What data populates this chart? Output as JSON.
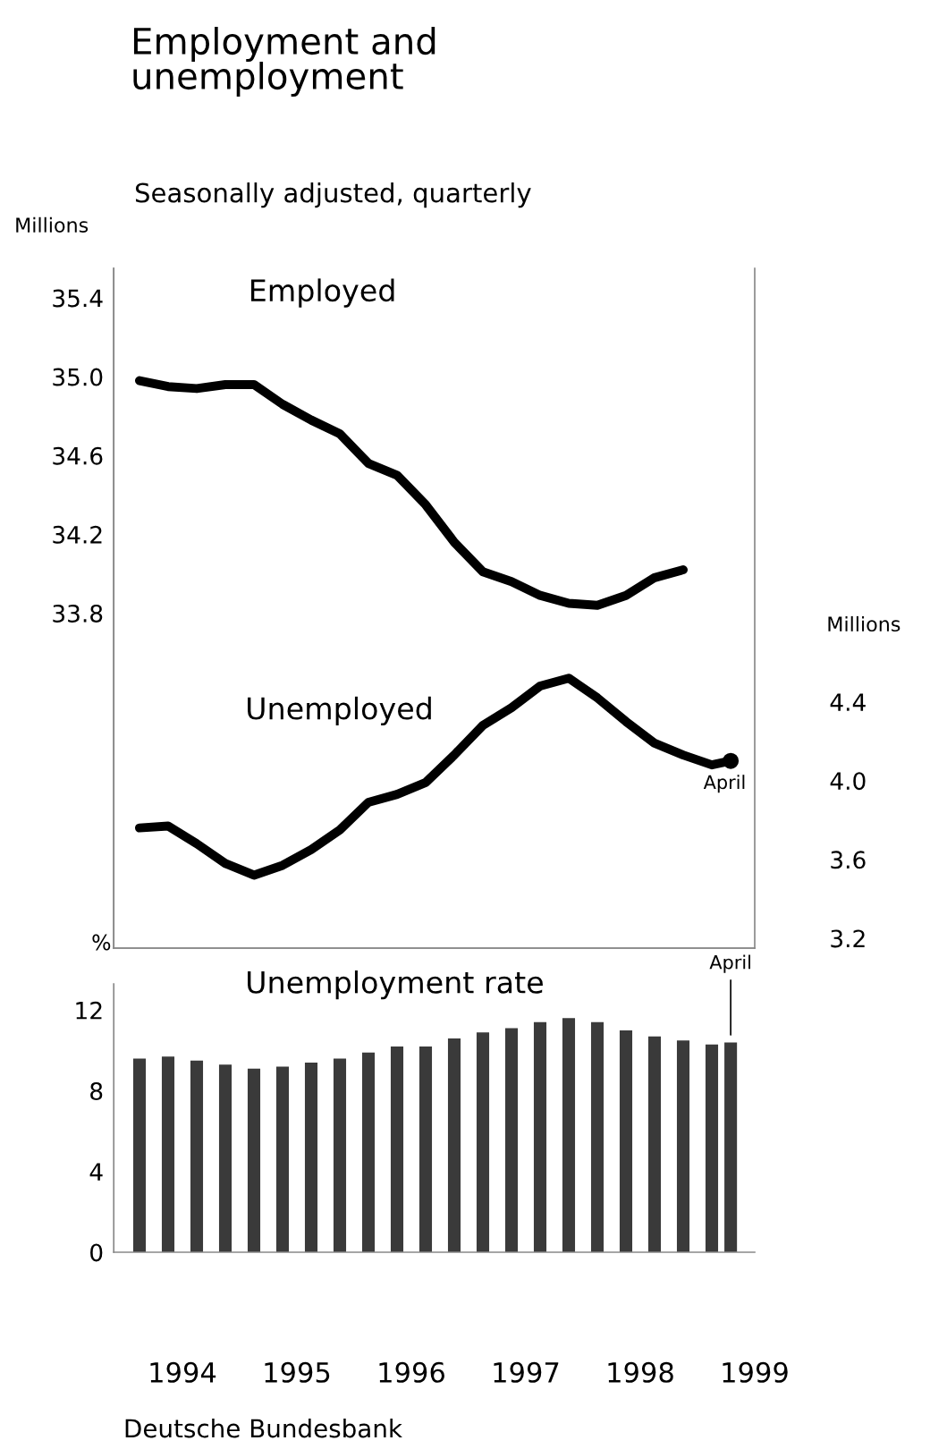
{
  "chart_data": [
    {
      "type": "line",
      "title": "Employment and\nunemployment",
      "subtitle": "Seasonally adjusted, quarterly",
      "ylabel": "Millions",
      "y2label": "Millions",
      "xlim": [
        1993.9,
        1999.5
      ],
      "ylim": [
        32.1,
        35.55
      ],
      "yticks": [
        33.8,
        34.2,
        34.6,
        {
          "value": 35.0,
          "label": "35.0"
        },
        35.4
      ],
      "y2lim": [
        3.15,
        6.6
      ],
      "y2ticks": [
        3.2,
        3.6,
        {
          "value": 4.0,
          "label": "4.0"
        },
        4.4
      ],
      "tick_labels": "y",
      "grid": false,
      "series": [
        {
          "name": "Employed",
          "color": "#000000",
          "x": [
            1994.125,
            1994.375,
            1994.625,
            1994.875,
            1995.125,
            1995.375,
            1995.625,
            1995.875,
            1996.125,
            1996.375,
            1996.625,
            1996.875,
            1997.125,
            1997.375,
            1997.625,
            1997.875,
            1998.125,
            1998.375,
            1998.625,
            1998.875
          ],
          "values": [
            34.98,
            34.95,
            34.94,
            34.96,
            34.96,
            34.86,
            34.78,
            34.71,
            34.56,
            34.5,
            34.35,
            34.16,
            34.01,
            33.96,
            33.89,
            33.85,
            33.84,
            33.89,
            33.98,
            34.02
          ]
        },
        {
          "name": "Unemployed",
          "color": "#000000",
          "axis": "y2",
          "x": [
            1994.125,
            1994.375,
            1994.625,
            1994.875,
            1995.125,
            1995.375,
            1995.625,
            1995.875,
            1996.125,
            1996.375,
            1996.625,
            1996.875,
            1997.125,
            1997.375,
            1997.625,
            1997.875,
            1998.125,
            1998.375,
            1998.625,
            1998.875,
            1999.125,
            1999.29
          ],
          "values": [
            3.76,
            3.77,
            3.68,
            3.58,
            3.52,
            3.57,
            3.65,
            3.75,
            3.89,
            3.93,
            3.99,
            4.13,
            4.28,
            4.37,
            4.48,
            4.52,
            4.42,
            4.3,
            4.19,
            4.13,
            4.08,
            4.1
          ]
        },
        {
          "type": "scatter",
          "color": "#000000",
          "axis": "y2",
          "marker": "circle",
          "x": [
            1999.29
          ],
          "values": [
            4.1
          ]
        }
      ],
      "annotations": [
        "April"
      ]
    },
    {
      "type": "bar",
      "ylabel": "%",
      "xlim": [
        1993.9,
        1999.5
      ],
      "ylim": [
        0,
        13.3
      ],
      "yticks": [
        0,
        4,
        8,
        12
      ],
      "xticks": [
        {
          "value": 1994.5,
          "label": "1994"
        },
        {
          "value": 1995.5,
          "label": "1995"
        },
        {
          "value": 1996.5,
          "label": "1996"
        },
        {
          "value": 1997.5,
          "label": "1997"
        },
        {
          "value": 1998.5,
          "label": "1998"
        },
        {
          "value": 1999.5,
          "label": "1999"
        }
      ],
      "grid": false,
      "x": [
        1994.125,
        1994.375,
        1994.625,
        1994.875,
        1995.125,
        1995.375,
        1995.625,
        1995.875,
        1996.125,
        1996.375,
        1996.625,
        1996.875,
        1997.125,
        1997.375,
        1997.625,
        1997.875,
        1998.125,
        1998.375,
        1998.625,
        1998.875,
        1999.125,
        1999.29
      ],
      "series": [
        {
          "name": "Unemployment rate",
          "color": "#3a3a3a",
          "values": [
            9.6,
            9.7,
            9.5,
            9.3,
            9.1,
            9.2,
            9.4,
            9.6,
            9.9,
            10.2,
            10.2,
            10.6,
            10.9,
            11.1,
            11.4,
            11.6,
            11.4,
            11.0,
            10.7,
            10.5,
            10.3,
            10.4
          ]
        }
      ],
      "annotations": [
        {
          "text": "April",
          "x": 1999.29,
          "y": 10.4
        },
        "Deutsche Bundesbank"
      ]
    }
  ]
}
